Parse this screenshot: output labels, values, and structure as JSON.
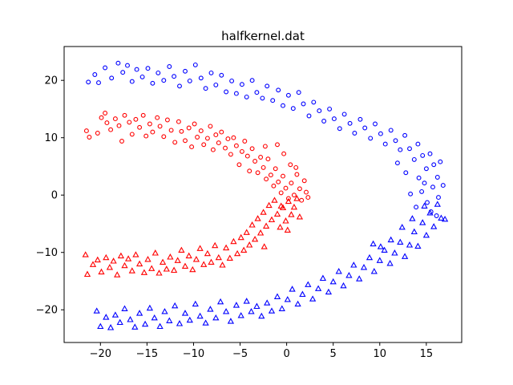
{
  "chart_data": {
    "type": "scatter",
    "title": "halfkernel.dat",
    "xlabel": "",
    "ylabel": "",
    "xlim": [
      -23.9,
      18.8
    ],
    "ylim": [
      -25.7,
      25.9
    ],
    "xticks": [
      -20,
      -15,
      -10,
      -5,
      0,
      5,
      10,
      15
    ],
    "yticks": [
      -20,
      -10,
      0,
      10,
      20
    ],
    "xtick_labels": [
      "−20",
      "−15",
      "−10",
      "−5",
      "0",
      "5",
      "10",
      "15"
    ],
    "ytick_labels": [
      "−20",
      "−10",
      "0",
      "10",
      "20"
    ],
    "grid": false,
    "legend": "none",
    "series": [
      {
        "color": "#ff0000",
        "marker": "circle",
        "points": [
          [
            -21.5,
            11.2
          ],
          [
            -21.2,
            10.1
          ],
          [
            -20.3,
            10.8
          ],
          [
            -19.9,
            13.5
          ],
          [
            -19.5,
            14.3
          ],
          [
            -19.3,
            12.6
          ],
          [
            -18.9,
            11.4
          ],
          [
            -18.4,
            13.3
          ],
          [
            -18.0,
            12.1
          ],
          [
            -17.7,
            9.4
          ],
          [
            -17.4,
            13.9
          ],
          [
            -16.9,
            12.7
          ],
          [
            -16.6,
            10.6
          ],
          [
            -16.2,
            13.2
          ],
          [
            -15.8,
            11.8
          ],
          [
            -15.4,
            13.9
          ],
          [
            -15.1,
            10.3
          ],
          [
            -14.7,
            12.4
          ],
          [
            -14.4,
            11.0
          ],
          [
            -13.9,
            13.5
          ],
          [
            -13.6,
            12.0
          ],
          [
            -13.2,
            10.2
          ],
          [
            -12.8,
            13.1
          ],
          [
            -12.4,
            11.3
          ],
          [
            -12.0,
            9.2
          ],
          [
            -11.6,
            12.8
          ],
          [
            -11.3,
            11.1
          ],
          [
            -10.9,
            9.5
          ],
          [
            -10.5,
            11.7
          ],
          [
            -10.2,
            8.4
          ],
          [
            -9.9,
            12.4
          ],
          [
            -9.6,
            10.1
          ],
          [
            -9.2,
            11.2
          ],
          [
            -8.9,
            8.8
          ],
          [
            -8.5,
            9.9
          ],
          [
            -8.2,
            12.0
          ],
          [
            -7.9,
            7.9
          ],
          [
            -7.6,
            10.5
          ],
          [
            -7.3,
            9.1
          ],
          [
            -7.0,
            11.0
          ],
          [
            -6.6,
            8.2
          ],
          [
            -6.3,
            9.8
          ],
          [
            -6.0,
            7.1
          ],
          [
            -5.7,
            10.0
          ],
          [
            -5.4,
            8.6
          ],
          [
            -5.1,
            5.3
          ],
          [
            -4.8,
            7.6
          ],
          [
            -4.5,
            9.4
          ],
          [
            -4.2,
            6.8
          ],
          [
            -4.0,
            4.2
          ],
          [
            -3.7,
            8.1
          ],
          [
            -3.4,
            5.9
          ],
          [
            -3.1,
            3.9
          ],
          [
            -2.8,
            6.6
          ],
          [
            -2.5,
            4.8
          ],
          [
            -2.2,
            2.8
          ],
          [
            -2.0,
            6.3
          ],
          [
            -1.7,
            3.5
          ],
          [
            -1.4,
            1.6
          ],
          [
            -1.2,
            4.6
          ],
          [
            -0.9,
            2.3
          ],
          [
            -0.6,
            0.4
          ],
          [
            -0.4,
            3.3
          ],
          [
            -0.1,
            1.2
          ],
          [
            0.2,
            -0.6
          ],
          [
            0.5,
            2.1
          ],
          [
            0.8,
            0.0
          ],
          [
            1.1,
            3.6
          ],
          [
            1.4,
            1.1
          ],
          [
            1.6,
            -0.9
          ],
          [
            1.9,
            2.5
          ],
          [
            2.1,
            0.5
          ],
          [
            2.3,
            -0.4
          ],
          [
            -1.0,
            8.8
          ],
          [
            -0.3,
            7.2
          ],
          [
            0.4,
            5.3
          ],
          [
            1.0,
            4.8
          ],
          [
            -2.3,
            8.5
          ]
        ]
      },
      {
        "color": "#ff0000",
        "marker": "triangle",
        "points": [
          [
            -21.6,
            -10.4
          ],
          [
            -21.4,
            -13.8
          ],
          [
            -20.8,
            -12.1
          ],
          [
            -20.3,
            -11.3
          ],
          [
            -19.9,
            -13.4
          ],
          [
            -19.4,
            -10.9
          ],
          [
            -19.0,
            -12.6
          ],
          [
            -18.6,
            -11.5
          ],
          [
            -18.2,
            -13.9
          ],
          [
            -17.8,
            -10.6
          ],
          [
            -17.4,
            -12.3
          ],
          [
            -17.0,
            -11.1
          ],
          [
            -16.6,
            -13.2
          ],
          [
            -16.2,
            -10.4
          ],
          [
            -15.8,
            -12.0
          ],
          [
            -15.3,
            -13.5
          ],
          [
            -14.9,
            -11.2
          ],
          [
            -14.5,
            -12.8
          ],
          [
            -14.1,
            -10.1
          ],
          [
            -13.7,
            -13.6
          ],
          [
            -13.3,
            -11.7
          ],
          [
            -12.9,
            -12.9
          ],
          [
            -12.5,
            -10.8
          ],
          [
            -12.1,
            -13.1
          ],
          [
            -11.7,
            -11.4
          ],
          [
            -11.3,
            -9.6
          ],
          [
            -10.9,
            -12.4
          ],
          [
            -10.5,
            -10.6
          ],
          [
            -10.1,
            -13.0
          ],
          [
            -9.7,
            -11.2
          ],
          [
            -9.3,
            -9.3
          ],
          [
            -8.9,
            -12.1
          ],
          [
            -8.5,
            -10.2
          ],
          [
            -8.1,
            -11.7
          ],
          [
            -7.7,
            -8.8
          ],
          [
            -7.3,
            -10.9
          ],
          [
            -6.9,
            -12.2
          ],
          [
            -6.5,
            -9.2
          ],
          [
            -6.1,
            -11.0
          ],
          [
            -5.7,
            -8.1
          ],
          [
            -5.3,
            -10.2
          ],
          [
            -4.9,
            -7.4
          ],
          [
            -4.6,
            -9.6
          ],
          [
            -4.3,
            -6.5
          ],
          [
            -4.0,
            -8.7
          ],
          [
            -3.7,
            -5.2
          ],
          [
            -3.4,
            -7.7
          ],
          [
            -3.1,
            -4.1
          ],
          [
            -2.8,
            -6.6
          ],
          [
            -2.5,
            -3.0
          ],
          [
            -2.2,
            -5.4
          ],
          [
            -1.9,
            -1.8
          ],
          [
            -1.6,
            -4.3
          ],
          [
            -1.3,
            -0.9
          ],
          [
            -1.0,
            -3.3
          ],
          [
            -0.7,
            -5.6
          ],
          [
            -0.4,
            -2.2
          ],
          [
            -0.1,
            -4.5
          ],
          [
            0.2,
            -1.1
          ],
          [
            0.5,
            -3.4
          ],
          [
            0.8,
            -2.1
          ],
          [
            1.1,
            -0.6
          ],
          [
            1.4,
            -3.8
          ],
          [
            -0.6,
            -1.9
          ],
          [
            0.1,
            -6.1
          ],
          [
            -2.4,
            -9.0
          ]
        ]
      },
      {
        "color": "#0000ff",
        "marker": "circle",
        "points": [
          [
            -21.3,
            19.7
          ],
          [
            -20.6,
            21.0
          ],
          [
            -20.2,
            19.6
          ],
          [
            -19.5,
            22.2
          ],
          [
            -18.8,
            20.4
          ],
          [
            -18.1,
            23.0
          ],
          [
            -17.6,
            21.4
          ],
          [
            -17.1,
            22.6
          ],
          [
            -16.6,
            19.8
          ],
          [
            -16.1,
            21.9
          ],
          [
            -15.5,
            20.6
          ],
          [
            -14.9,
            22.1
          ],
          [
            -14.4,
            19.5
          ],
          [
            -13.8,
            21.3
          ],
          [
            -13.2,
            20.0
          ],
          [
            -12.6,
            22.4
          ],
          [
            -12.1,
            20.7
          ],
          [
            -11.5,
            19.0
          ],
          [
            -10.9,
            21.6
          ],
          [
            -10.4,
            19.9
          ],
          [
            -9.8,
            22.7
          ],
          [
            -9.2,
            20.4
          ],
          [
            -8.7,
            18.6
          ],
          [
            -8.1,
            21.3
          ],
          [
            -7.6,
            19.2
          ],
          [
            -7.0,
            20.9
          ],
          [
            -6.5,
            18.0
          ],
          [
            -5.9,
            19.9
          ],
          [
            -5.4,
            17.7
          ],
          [
            -4.8,
            19.3
          ],
          [
            -4.3,
            17.1
          ],
          [
            -3.7,
            20.0
          ],
          [
            -3.2,
            17.9
          ],
          [
            -2.6,
            16.9
          ],
          [
            -2.1,
            19.0
          ],
          [
            -1.5,
            16.5
          ],
          [
            -0.9,
            18.3
          ],
          [
            -0.4,
            15.6
          ],
          [
            0.2,
            17.4
          ],
          [
            0.7,
            15.1
          ],
          [
            1.3,
            17.9
          ],
          [
            1.8,
            15.9
          ],
          [
            2.4,
            13.8
          ],
          [
            2.9,
            16.2
          ],
          [
            3.5,
            14.7
          ],
          [
            4.0,
            12.9
          ],
          [
            4.6,
            15.0
          ],
          [
            5.1,
            13.3
          ],
          [
            5.7,
            11.6
          ],
          [
            6.2,
            14.1
          ],
          [
            6.8,
            12.5
          ],
          [
            7.3,
            10.8
          ],
          [
            7.9,
            13.2
          ],
          [
            8.4,
            11.7
          ],
          [
            9.0,
            9.9
          ],
          [
            9.5,
            12.4
          ],
          [
            10.1,
            10.7
          ],
          [
            10.6,
            8.9
          ],
          [
            11.2,
            11.3
          ],
          [
            11.7,
            9.5
          ],
          [
            12.2,
            7.9
          ],
          [
            12.7,
            10.4
          ],
          [
            13.2,
            8.1
          ],
          [
            13.7,
            6.2
          ],
          [
            14.1,
            8.9
          ],
          [
            14.6,
            6.9
          ],
          [
            15.0,
            4.6
          ],
          [
            15.4,
            7.2
          ],
          [
            15.8,
            5.3
          ],
          [
            16.2,
            3.1
          ],
          [
            16.5,
            5.8
          ],
          [
            16.8,
            1.7
          ],
          [
            16.3,
            -0.4
          ],
          [
            15.7,
            1.4
          ],
          [
            15.1,
            -1.3
          ],
          [
            14.5,
            0.6
          ],
          [
            13.9,
            -2.1
          ],
          [
            13.3,
            0.2
          ],
          [
            14.2,
            3.0
          ],
          [
            15.5,
            -2.9
          ],
          [
            12.8,
            3.9
          ],
          [
            11.9,
            5.6
          ],
          [
            16.1,
            -3.6
          ],
          [
            14.8,
            2.1
          ]
        ]
      },
      {
        "color": "#0000ff",
        "marker": "triangle",
        "points": [
          [
            -20.4,
            -20.2
          ],
          [
            -20.0,
            -22.9
          ],
          [
            -19.4,
            -21.3
          ],
          [
            -18.9,
            -23.1
          ],
          [
            -18.4,
            -20.9
          ],
          [
            -17.9,
            -22.2
          ],
          [
            -17.4,
            -19.8
          ],
          [
            -16.8,
            -21.7
          ],
          [
            -16.3,
            -23.0
          ],
          [
            -15.8,
            -20.6
          ],
          [
            -15.2,
            -22.5
          ],
          [
            -14.7,
            -19.7
          ],
          [
            -14.2,
            -21.4
          ],
          [
            -13.6,
            -22.9
          ],
          [
            -13.1,
            -20.3
          ],
          [
            -12.6,
            -21.9
          ],
          [
            -12.0,
            -19.3
          ],
          [
            -11.5,
            -22.4
          ],
          [
            -10.9,
            -20.6
          ],
          [
            -10.4,
            -21.8
          ],
          [
            -9.8,
            -19.0
          ],
          [
            -9.3,
            -21.1
          ],
          [
            -8.7,
            -22.3
          ],
          [
            -8.2,
            -19.9
          ],
          [
            -7.6,
            -21.4
          ],
          [
            -7.1,
            -18.6
          ],
          [
            -6.5,
            -20.3
          ],
          [
            -6.0,
            -22.0
          ],
          [
            -5.4,
            -19.2
          ],
          [
            -4.9,
            -21.0
          ],
          [
            -4.3,
            -18.5
          ],
          [
            -3.8,
            -20.3
          ],
          [
            -3.2,
            -19.4
          ],
          [
            -2.7,
            -21.1
          ],
          [
            -2.1,
            -18.8
          ],
          [
            -1.6,
            -20.2
          ],
          [
            -1.0,
            -17.7
          ],
          [
            -0.5,
            -19.8
          ],
          [
            0.1,
            -18.2
          ],
          [
            0.6,
            -16.4
          ],
          [
            1.2,
            -19.0
          ],
          [
            1.7,
            -17.3
          ],
          [
            2.3,
            -15.6
          ],
          [
            2.8,
            -18.1
          ],
          [
            3.4,
            -16.3
          ],
          [
            3.9,
            -14.5
          ],
          [
            4.5,
            -16.9
          ],
          [
            5.0,
            -15.1
          ],
          [
            5.6,
            -13.3
          ],
          [
            6.1,
            -15.8
          ],
          [
            6.7,
            -14.0
          ],
          [
            7.2,
            -12.2
          ],
          [
            7.8,
            -14.6
          ],
          [
            8.3,
            -12.6
          ],
          [
            8.9,
            -10.9
          ],
          [
            9.4,
            -13.3
          ],
          [
            10.0,
            -11.4
          ],
          [
            10.5,
            -9.6
          ],
          [
            11.1,
            -11.9
          ],
          [
            11.6,
            -10.1
          ],
          [
            12.2,
            -8.2
          ],
          [
            12.7,
            -10.7
          ],
          [
            13.2,
            -8.7
          ],
          [
            13.7,
            -6.4
          ],
          [
            14.1,
            -8.9
          ],
          [
            14.6,
            -4.8
          ],
          [
            15.0,
            -7.0
          ],
          [
            15.4,
            -3.1
          ],
          [
            15.8,
            -5.5
          ],
          [
            16.2,
            -1.6
          ],
          [
            16.6,
            -4.0
          ],
          [
            17.0,
            -4.2
          ],
          [
            13.5,
            -4.1
          ],
          [
            12.4,
            -5.6
          ],
          [
            11.2,
            -7.8
          ],
          [
            14.8,
            -1.9
          ],
          [
            10.1,
            -9.0
          ],
          [
            9.3,
            -8.5
          ]
        ]
      }
    ]
  }
}
